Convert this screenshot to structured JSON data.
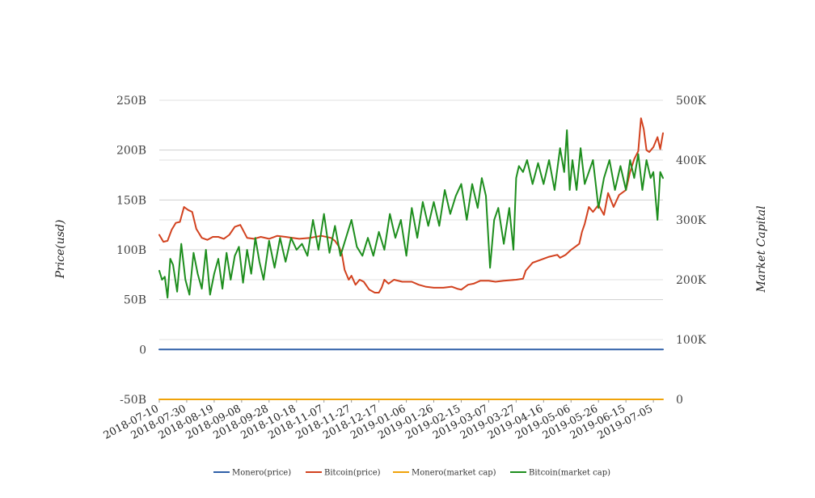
{
  "chart_data": {
    "type": "line",
    "ylabel_left": "Price(usd)",
    "ylabel_right": "Market Capital",
    "left_ticks": [
      "250B",
      "200B",
      "150B",
      "100B",
      "50B",
      "0",
      "-50B"
    ],
    "right_ticks": [
      "500K",
      "400K",
      "300K",
      "200K",
      "100K",
      "0"
    ],
    "left_ylim": [
      -50,
      250
    ],
    "right_ylim": [
      0,
      500
    ],
    "x_start": "2018-07-10",
    "x_end": "2019-07-12",
    "x_tick_labels": [
      "2018-07-10",
      "2018-07-30",
      "2018-08-19",
      "2018-09-08",
      "2018-09-28",
      "2018-10-18",
      "2018-11-07",
      "2018-11-27",
      "2018-12-17",
      "2019-01-06",
      "2019-01-26",
      "2019-02-15",
      "2019-03-07",
      "2019-03-27",
      "2019-04-16",
      "2019-05-06",
      "2019-05-26",
      "2019-06-15",
      "2019-07-05"
    ],
    "legend_position": "bottom-center",
    "grid": true,
    "series": [
      {
        "name": "Monero(price)",
        "axis": "left",
        "color": "#2f5fa8",
        "x": [
          "2018-07-10",
          "2018-11-07",
          "2019-03-07",
          "2019-05-06",
          "2019-07-12"
        ],
        "y": [
          0.0,
          0.0,
          0.0,
          0.0,
          0.0
        ]
      },
      {
        "name": "Bitcoin(price)",
        "axis": "left",
        "color": "#d2421f",
        "x": [
          "2018-07-10",
          "2018-07-13",
          "2018-07-16",
          "2018-07-19",
          "2018-07-22",
          "2018-07-25",
          "2018-07-28",
          "2018-07-31",
          "2018-08-03",
          "2018-08-06",
          "2018-08-10",
          "2018-08-14",
          "2018-08-18",
          "2018-08-22",
          "2018-08-26",
          "2018-08-30",
          "2018-09-03",
          "2018-09-07",
          "2018-09-12",
          "2018-09-17",
          "2018-09-22",
          "2018-09-28",
          "2018-10-04",
          "2018-10-10",
          "2018-10-15",
          "2018-10-20",
          "2018-10-28",
          "2018-11-05",
          "2018-11-12",
          "2018-11-15",
          "2018-11-18",
          "2018-11-20",
          "2018-11-22",
          "2018-11-25",
          "2018-11-27",
          "2018-11-30",
          "2018-12-03",
          "2018-12-06",
          "2018-12-10",
          "2018-12-14",
          "2018-12-17",
          "2018-12-19",
          "2018-12-21",
          "2018-12-24",
          "2018-12-28",
          "2019-01-03",
          "2019-01-10",
          "2019-01-15",
          "2019-01-20",
          "2019-01-26",
          "2019-02-02",
          "2019-02-08",
          "2019-02-12",
          "2019-02-15",
          "2019-02-20",
          "2019-02-24",
          "2019-03-01",
          "2019-03-07",
          "2019-03-12",
          "2019-03-18",
          "2019-03-27",
          "2019-04-01",
          "2019-04-03",
          "2019-04-08",
          "2019-04-14",
          "2019-04-20",
          "2019-04-26",
          "2019-04-28",
          "2019-05-02",
          "2019-05-06",
          "2019-05-10",
          "2019-05-12",
          "2019-05-14",
          "2019-05-16",
          "2019-05-19",
          "2019-05-22",
          "2019-05-26",
          "2019-05-30",
          "2019-06-02",
          "2019-06-06",
          "2019-06-10",
          "2019-06-15",
          "2019-06-18",
          "2019-06-21",
          "2019-06-24",
          "2019-06-26",
          "2019-06-28",
          "2019-06-30",
          "2019-07-02",
          "2019-07-05",
          "2019-07-08",
          "2019-07-10",
          "2019-07-12"
        ],
        "y": [
          115,
          108,
          109,
          120,
          127,
          128,
          143,
          140,
          138,
          121,
          112,
          110,
          113,
          113,
          111,
          115,
          123,
          125,
          112,
          111,
          113,
          111,
          114,
          113,
          112,
          111,
          112,
          114,
          112,
          109,
          103,
          96,
          80,
          70,
          74,
          65,
          70,
          68,
          60,
          57,
          57,
          62,
          70,
          66,
          70,
          68,
          68,
          65,
          63,
          62,
          62,
          63,
          61,
          60,
          65,
          66,
          69,
          69,
          68,
          69,
          70,
          71,
          79,
          87,
          90,
          93,
          95,
          92,
          95,
          100,
          104,
          106,
          118,
          126,
          143,
          138,
          145,
          135,
          157,
          143,
          155,
          160,
          178,
          191,
          199,
          232,
          221,
          200,
          198,
          203,
          213,
          201,
          217
        ]
      },
      {
        "name": "Monero(market cap)",
        "axis": "right",
        "color": "#f0a30a",
        "x": [
          "2018-07-10",
          "2019-07-12"
        ],
        "y": [
          0,
          0
        ]
      },
      {
        "name": "Bitcoin(market cap)",
        "axis": "right",
        "color": "#1e8e1e",
        "x": [
          "2018-07-10",
          "2018-07-12",
          "2018-07-14",
          "2018-07-16",
          "2018-07-18",
          "2018-07-20",
          "2018-07-23",
          "2018-07-26",
          "2018-07-29",
          "2018-08-01",
          "2018-08-04",
          "2018-08-07",
          "2018-08-10",
          "2018-08-13",
          "2018-08-16",
          "2018-08-19",
          "2018-08-22",
          "2018-08-25",
          "2018-08-28",
          "2018-08-31",
          "2018-09-03",
          "2018-09-06",
          "2018-09-09",
          "2018-09-12",
          "2018-09-15",
          "2018-09-18",
          "2018-09-21",
          "2018-09-24",
          "2018-09-28",
          "2018-10-02",
          "2018-10-06",
          "2018-10-10",
          "2018-10-14",
          "2018-10-18",
          "2018-10-22",
          "2018-10-26",
          "2018-10-30",
          "2018-11-03",
          "2018-11-07",
          "2018-11-11",
          "2018-11-15",
          "2018-11-19",
          "2018-11-23",
          "2018-11-27",
          "2018-12-01",
          "2018-12-05",
          "2018-12-09",
          "2018-12-13",
          "2018-12-17",
          "2018-12-21",
          "2018-12-25",
          "2018-12-29",
          "2019-01-02",
          "2019-01-06",
          "2019-01-10",
          "2019-01-14",
          "2019-01-18",
          "2019-01-22",
          "2019-01-26",
          "2019-01-30",
          "2019-02-03",
          "2019-02-07",
          "2019-02-11",
          "2019-02-15",
          "2019-02-19",
          "2019-02-23",
          "2019-02-27",
          "2019-03-02",
          "2019-03-05",
          "2019-03-08",
          "2019-03-11",
          "2019-03-14",
          "2019-03-18",
          "2019-03-22",
          "2019-03-25",
          "2019-03-27",
          "2019-03-29",
          "2019-04-01",
          "2019-04-04",
          "2019-04-08",
          "2019-04-12",
          "2019-04-16",
          "2019-04-20",
          "2019-04-24",
          "2019-04-28",
          "2019-05-01",
          "2019-05-03",
          "2019-05-05",
          "2019-05-07",
          "2019-05-10",
          "2019-05-13",
          "2019-05-16",
          "2019-05-19",
          "2019-05-22",
          "2019-05-26",
          "2019-05-30",
          "2019-06-03",
          "2019-06-07",
          "2019-06-11",
          "2019-06-15",
          "2019-06-18",
          "2019-06-21",
          "2019-06-24",
          "2019-06-27",
          "2019-06-30",
          "2019-07-03",
          "2019-07-05",
          "2019-07-08",
          "2019-07-10",
          "2019-07-12"
        ],
        "y": [
          215,
          200,
          205,
          170,
          235,
          225,
          180,
          260,
          200,
          175,
          245,
          210,
          185,
          250,
          175,
          210,
          235,
          185,
          245,
          200,
          240,
          255,
          195,
          250,
          210,
          270,
          230,
          200,
          265,
          220,
          270,
          230,
          270,
          250,
          260,
          240,
          300,
          250,
          310,
          245,
          290,
          240,
          270,
          300,
          255,
          240,
          270,
          240,
          280,
          250,
          310,
          270,
          300,
          240,
          320,
          270,
          330,
          290,
          330,
          290,
          350,
          310,
          340,
          360,
          300,
          360,
          320,
          370,
          340,
          220,
          300,
          320,
          260,
          320,
          250,
          370,
          390,
          380,
          400,
          360,
          395,
          360,
          400,
          350,
          420,
          380,
          450,
          350,
          400,
          350,
          420,
          360,
          380,
          400,
          320,
          370,
          400,
          350,
          390,
          350,
          400,
          370,
          410,
          350,
          400,
          370,
          380,
          300,
          380,
          370
        ]
      }
    ]
  }
}
